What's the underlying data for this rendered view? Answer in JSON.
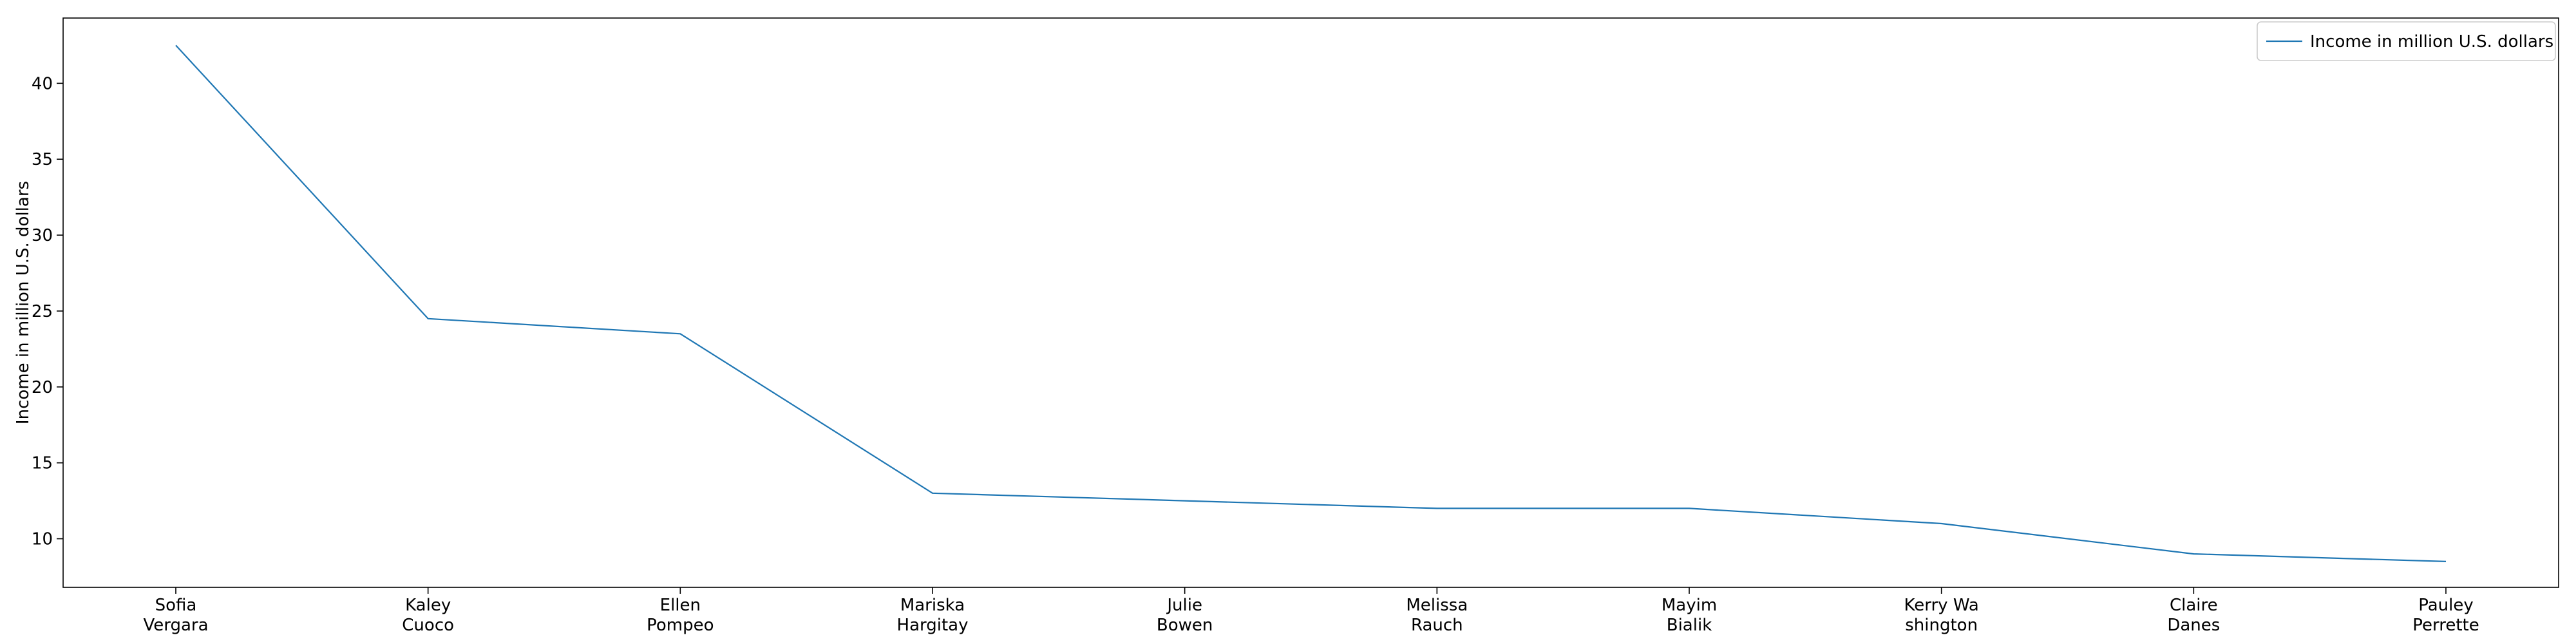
{
  "chart_data": {
    "type": "line",
    "categories": [
      [
        "Sofia",
        "Vergara"
      ],
      [
        "Kaley",
        "Cuoco"
      ],
      [
        "Ellen",
        "Pompeo"
      ],
      [
        "Mariska",
        "Hargitay"
      ],
      [
        "Julie",
        "Bowen"
      ],
      [
        "Melissa",
        "Rauch"
      ],
      [
        "Mayim",
        "Bialik"
      ],
      [
        "Kerry Wa",
        "shington"
      ],
      [
        "Claire",
        "Danes"
      ],
      [
        "Pauley",
        "Perrette"
      ]
    ],
    "series": [
      {
        "name": "Income in million U.S. dollars",
        "values": [
          42.5,
          24.5,
          23.5,
          13,
          12.5,
          12,
          12,
          11,
          9,
          8.5
        ],
        "color": "#1f77b4"
      }
    ],
    "ylabel": "Income in million U.S. dollars",
    "xlabel": "",
    "ylim": [
      6.8,
      44.3
    ],
    "yticks": [
      10,
      15,
      20,
      25,
      30,
      35,
      40
    ],
    "grid": false,
    "legend_position": "top-right"
  }
}
